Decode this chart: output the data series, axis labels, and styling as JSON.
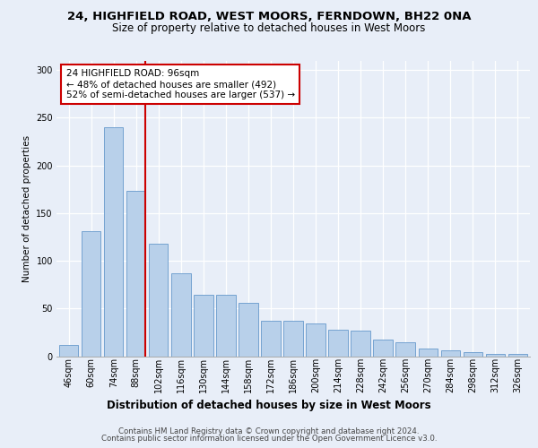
{
  "title1": "24, HIGHFIELD ROAD, WEST MOORS, FERNDOWN, BH22 0NA",
  "title2": "Size of property relative to detached houses in West Moors",
  "xlabel": "Distribution of detached houses by size in West Moors",
  "ylabel": "Number of detached properties",
  "categories": [
    "46sqm",
    "60sqm",
    "74sqm",
    "88sqm",
    "102sqm",
    "116sqm",
    "130sqm",
    "144sqm",
    "158sqm",
    "172sqm",
    "186sqm",
    "200sqm",
    "214sqm",
    "228sqm",
    "242sqm",
    "256sqm",
    "270sqm",
    "284sqm",
    "298sqm",
    "312sqm",
    "326sqm"
  ],
  "values": [
    12,
    131,
    240,
    173,
    118,
    87,
    64,
    64,
    56,
    37,
    37,
    34,
    28,
    27,
    17,
    15,
    8,
    6,
    4,
    2,
    2
  ],
  "bar_color": "#b8d0ea",
  "bar_edge_color": "#6699cc",
  "vline_color": "#cc0000",
  "vline_x": 3.42,
  "annotation_line1": "24 HIGHFIELD ROAD: 96sqm",
  "annotation_line2": "← 48% of detached houses are smaller (492)",
  "annotation_line3": "52% of semi-detached houses are larger (537) →",
  "annotation_box_color": "#ffffff",
  "annotation_box_edge_color": "#cc0000",
  "ylim": [
    0,
    310
  ],
  "yticks": [
    0,
    50,
    100,
    150,
    200,
    250,
    300
  ],
  "footer1": "Contains HM Land Registry data © Crown copyright and database right 2024.",
  "footer2": "Contains public sector information licensed under the Open Government Licence v3.0.",
  "bg_color": "#e8eef8",
  "plot_bg_color": "#e8eef8",
  "grid_color": "#ffffff",
  "title1_fontsize": 9.5,
  "title2_fontsize": 8.5,
  "ylabel_fontsize": 7.5,
  "xlabel_fontsize": 8.5,
  "tick_fontsize": 7,
  "footer_fontsize": 6.2
}
